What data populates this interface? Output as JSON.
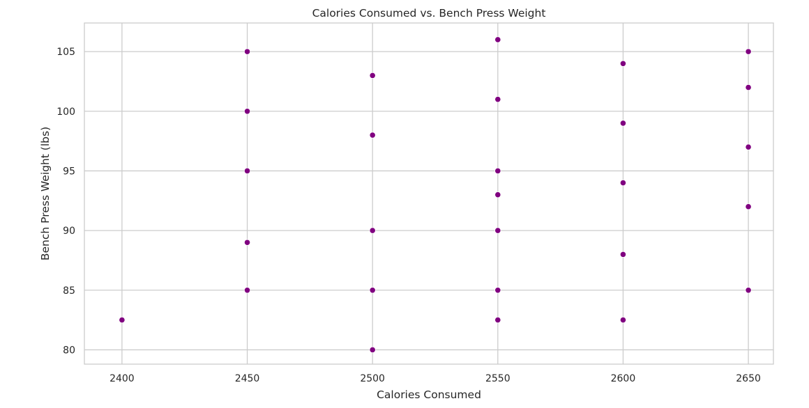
{
  "chart_data": {
    "type": "scatter",
    "title": "Calories Consumed vs. Bench Press Weight",
    "xlabel": "Calories Consumed",
    "ylabel": "Bench Press Weight (lbs)",
    "xlim": [
      2385,
      2660
    ],
    "ylim": [
      78.8,
      107.4
    ],
    "x_ticks": [
      2400,
      2450,
      2500,
      2550,
      2600,
      2650
    ],
    "y_ticks": [
      80,
      85,
      90,
      95,
      100,
      105
    ],
    "grid": true,
    "marker_color": "#800080",
    "grid_color": "#cccccc",
    "spine_color": "#cccccc",
    "points": [
      {
        "x": 2400,
        "y": 82.5
      },
      {
        "x": 2450,
        "y": 105
      },
      {
        "x": 2450,
        "y": 100
      },
      {
        "x": 2450,
        "y": 95
      },
      {
        "x": 2450,
        "y": 89
      },
      {
        "x": 2450,
        "y": 85
      },
      {
        "x": 2500,
        "y": 103
      },
      {
        "x": 2500,
        "y": 98
      },
      {
        "x": 2500,
        "y": 90
      },
      {
        "x": 2500,
        "y": 85
      },
      {
        "x": 2500,
        "y": 80
      },
      {
        "x": 2550,
        "y": 106
      },
      {
        "x": 2550,
        "y": 101
      },
      {
        "x": 2550,
        "y": 95
      },
      {
        "x": 2550,
        "y": 93
      },
      {
        "x": 2550,
        "y": 90
      },
      {
        "x": 2550,
        "y": 85
      },
      {
        "x": 2550,
        "y": 82.5
      },
      {
        "x": 2600,
        "y": 104
      },
      {
        "x": 2600,
        "y": 99
      },
      {
        "x": 2600,
        "y": 94
      },
      {
        "x": 2600,
        "y": 88
      },
      {
        "x": 2600,
        "y": 82.5
      },
      {
        "x": 2650,
        "y": 105
      },
      {
        "x": 2650,
        "y": 102
      },
      {
        "x": 2650,
        "y": 97
      },
      {
        "x": 2650,
        "y": 92
      },
      {
        "x": 2650,
        "y": 85
      }
    ]
  }
}
